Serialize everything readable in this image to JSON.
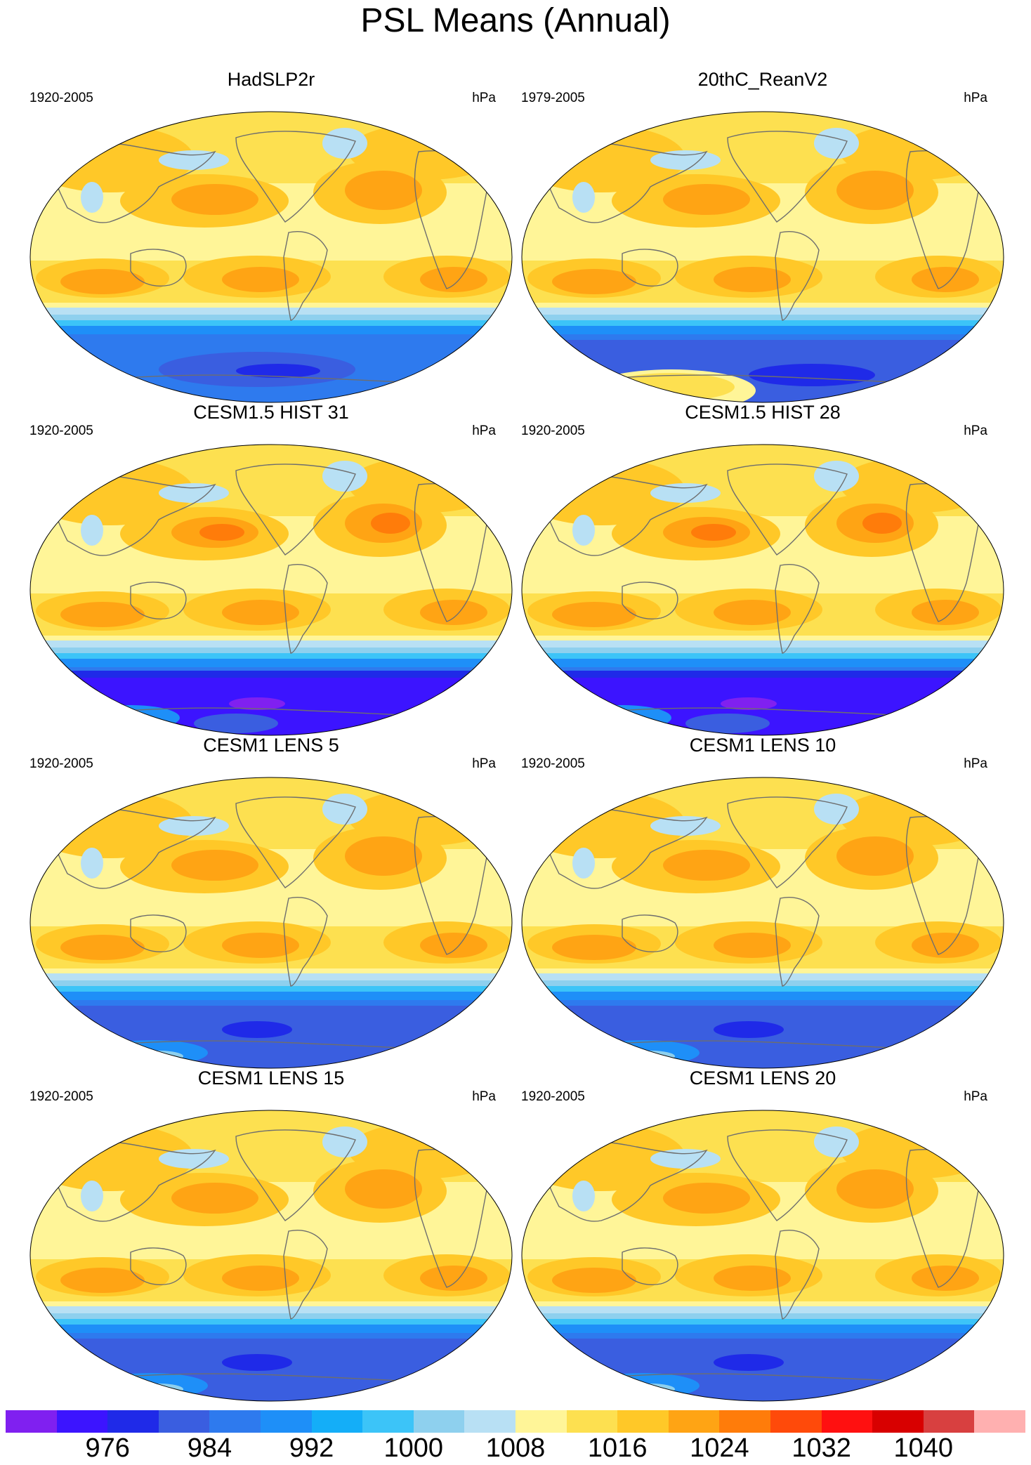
{
  "title": "PSL Means (Annual)",
  "unit_label": "hPa",
  "panels": [
    {
      "title": "HadSLP2r",
      "period": "1920-2005",
      "variant": "obs"
    },
    {
      "title": "20thC_ReanV2",
      "period": "1979-2005",
      "variant": "rean"
    },
    {
      "title": "CESM1.5 HIST 31",
      "period": "1920-2005",
      "variant": "hist"
    },
    {
      "title": "CESM1.5 HIST 28",
      "period": "1920-2005",
      "variant": "hist"
    },
    {
      "title": "CESM1 LENS 5",
      "period": "1920-2005",
      "variant": "lens"
    },
    {
      "title": "CESM1 LENS 10",
      "period": "1920-2005",
      "variant": "lens"
    },
    {
      "title": "CESM1 LENS 15",
      "period": "1920-2005",
      "variant": "lens"
    },
    {
      "title": "CESM1 LENS 20",
      "period": "1920-2005",
      "variant": "lens"
    }
  ],
  "colorbar": {
    "colors": [
      "#8020f0",
      "#3c14ff",
      "#1f2ae8",
      "#3a5ee0",
      "#2e7aee",
      "#1e8ff8",
      "#14aef8",
      "#3cc4f8",
      "#8ed0ee",
      "#b8e0f4",
      "#fff598",
      "#fde050",
      "#ffc828",
      "#ffa414",
      "#ff7c0a",
      "#ff4a0a",
      "#ff1010",
      "#d80000",
      "#d84040",
      "#ffb0b0"
    ],
    "label_values": [
      "976",
      "984",
      "992",
      "1000",
      "1008",
      "1016",
      "1024",
      "1032",
      "1040"
    ]
  }
}
